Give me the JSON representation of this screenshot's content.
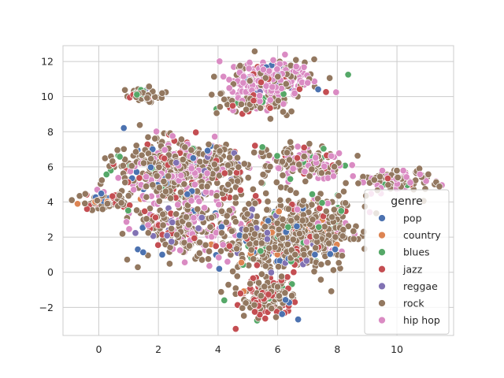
{
  "chart_data": {
    "type": "scatter",
    "title": "",
    "xlabel": "",
    "ylabel": "",
    "xlim": [
      -1.2,
      11.9
    ],
    "ylim": [
      -3.6,
      12.9
    ],
    "xticks": [
      0,
      2,
      4,
      6,
      8,
      10
    ],
    "yticks": [
      -2,
      0,
      2,
      4,
      6,
      8,
      10,
      12
    ],
    "xtick_labels": [
      "0",
      "2",
      "4",
      "6",
      "8",
      "10"
    ],
    "ytick_labels": [
      "−2",
      "0",
      "2",
      "4",
      "6",
      "8",
      "10",
      "12"
    ],
    "grid": true,
    "style": "whitegrid",
    "legend": {
      "title": "genre",
      "position": "lower-right"
    },
    "series": [
      {
        "name": "pop",
        "color": "#4c72b0"
      },
      {
        "name": "country",
        "color": "#dd8452"
      },
      {
        "name": "blues",
        "color": "#55a868"
      },
      {
        "name": "jazz",
        "color": "#c44e52"
      },
      {
        "name": "reggae",
        "color": "#8172b3"
      },
      {
        "name": "rock",
        "color": "#937860"
      },
      {
        "name": "hip hop",
        "color": "#da8bc3"
      }
    ],
    "clusters": [
      {
        "center": [
          5.8,
          11.0
        ],
        "spread": [
          0.7,
          0.5
        ],
        "n": 260,
        "mix": {
          "hip hop": 0.6,
          "rock": 0.25,
          "jazz": 0.05,
          "pop": 0.04,
          "blues": 0.03,
          "reggae": 0.03
        }
      },
      {
        "center": [
          5.2,
          9.6
        ],
        "spread": [
          0.6,
          0.4
        ],
        "n": 80,
        "mix": {
          "rock": 0.55,
          "jazz": 0.2,
          "hip hop": 0.15,
          "blues": 0.1
        }
      },
      {
        "center": [
          1.4,
          10.1
        ],
        "spread": [
          0.3,
          0.25
        ],
        "n": 40,
        "mix": {
          "rock": 0.75,
          "jazz": 0.1,
          "blues": 0.08,
          "reggae": 0.07
        }
      },
      {
        "center": [
          2.3,
          5.8
        ],
        "spread": [
          0.9,
          0.9
        ],
        "n": 360,
        "mix": {
          "rock": 0.62,
          "hip hop": 0.25,
          "jazz": 0.06,
          "pop": 0.03,
          "blues": 0.04
        }
      },
      {
        "center": [
          0.2,
          4.0
        ],
        "spread": [
          0.45,
          0.25
        ],
        "n": 70,
        "mix": {
          "rock": 0.6,
          "jazz": 0.25,
          "pop": 0.08,
          "country": 0.07
        }
      },
      {
        "center": [
          3.0,
          2.8
        ],
        "spread": [
          0.8,
          1.0
        ],
        "n": 260,
        "mix": {
          "rock": 0.55,
          "hip hop": 0.28,
          "jazz": 0.07,
          "pop": 0.05,
          "reggae": 0.05
        }
      },
      {
        "center": [
          5.9,
          1.9
        ],
        "spread": [
          0.9,
          1.1
        ],
        "n": 420,
        "mix": {
          "rock": 0.72,
          "jazz": 0.1,
          "pop": 0.06,
          "blues": 0.05,
          "reggae": 0.04,
          "country": 0.03
        }
      },
      {
        "center": [
          7.3,
          2.6
        ],
        "spread": [
          0.7,
          0.9
        ],
        "n": 220,
        "mix": {
          "rock": 0.75,
          "hip hop": 0.1,
          "jazz": 0.07,
          "blues": 0.05,
          "country": 0.03
        }
      },
      {
        "center": [
          6.8,
          6.3
        ],
        "spread": [
          0.7,
          0.45
        ],
        "n": 160,
        "mix": {
          "hip hop": 0.45,
          "rock": 0.45,
          "jazz": 0.05,
          "blues": 0.05
        }
      },
      {
        "center": [
          5.6,
          -1.4
        ],
        "spread": [
          0.5,
          0.6
        ],
        "n": 150,
        "mix": {
          "rock": 0.55,
          "jazz": 0.35,
          "pop": 0.05,
          "blues": 0.05
        }
      },
      {
        "center": [
          10.0,
          5.3
        ],
        "spread": [
          0.7,
          0.35
        ],
        "n": 110,
        "mix": {
          "rock": 0.6,
          "hip hop": 0.3,
          "jazz": 0.05,
          "blues": 0.05
        }
      },
      {
        "center": [
          4.0,
          6.0
        ],
        "spread": [
          0.6,
          0.8
        ],
        "n": 130,
        "mix": {
          "rock": 0.65,
          "jazz": 0.15,
          "reggae": 0.08,
          "hip hop": 0.07,
          "pop": 0.05
        }
      }
    ]
  }
}
